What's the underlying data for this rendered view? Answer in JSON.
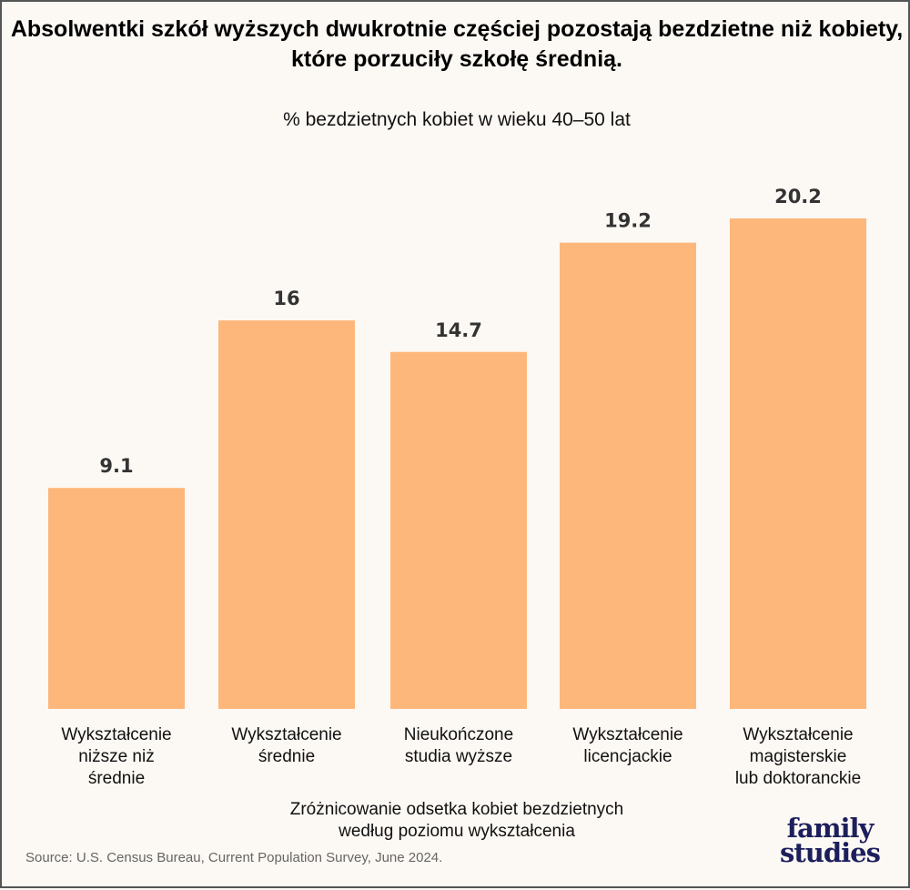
{
  "chart_data": {
    "type": "bar",
    "title": "Absolwentki szkół wyższych dwukrotnie częściej pozostają bezdzietne niż kobiety, które porzuciły szkołę średnią.",
    "subtitle": "% bezdzietnych kobiet w wieku 40–50 lat",
    "categories": [
      [
        "Wykształcenie",
        "niższe niż",
        "średnie"
      ],
      [
        "Wykształcenie",
        "średnie"
      ],
      [
        "Nieukończone",
        "studia wyższe"
      ],
      [
        "Wykształcenie",
        "licencjackie"
      ],
      [
        "Wykształcenie",
        "magisterskie",
        "lub doktoranckie"
      ]
    ],
    "values": [
      9.1,
      16,
      14.7,
      19.2,
      20.2
    ],
    "data_labels": [
      "9.1",
      "16",
      "14.7",
      "19.2",
      "20.2"
    ],
    "xlabel": [
      "Zróżnicowanie odsetka kobiet bezdzietnych",
      "według poziomu wykształcenia"
    ],
    "ylabel": "",
    "ylim": [
      0,
      20.2
    ],
    "grid": false,
    "bar_color": "#fdb77b",
    "background": "#fcf8f3"
  },
  "source": "Source: U.S. Census Bureau, Current Population Survey, June 2024.",
  "logo": {
    "line1": "family",
    "line2": "studies"
  }
}
